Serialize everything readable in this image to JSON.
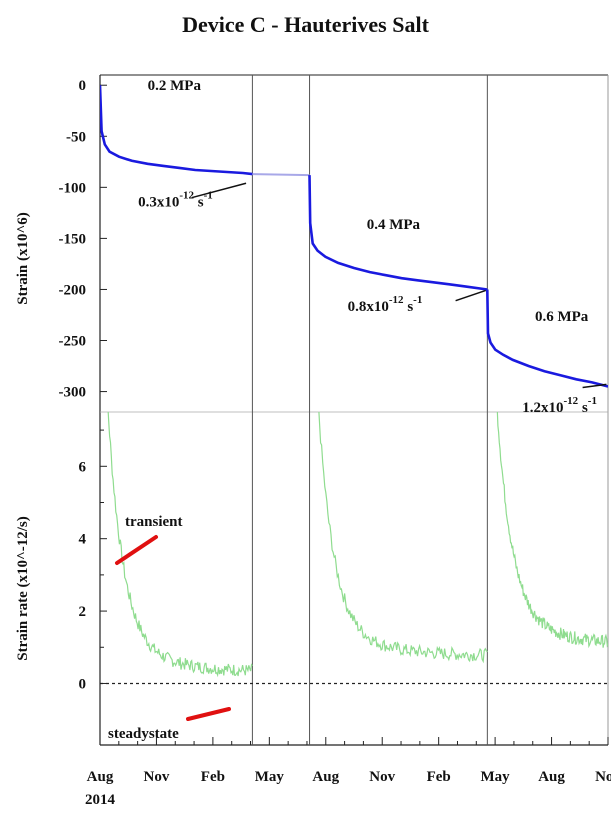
{
  "chart_data": [
    {
      "type": "line",
      "title": "Device C - Hauterives Salt",
      "ylabel": "Strain (x10^6)",
      "ylim": [
        -320,
        10
      ],
      "y_ticks": [
        0,
        -50,
        -100,
        -150,
        -200,
        -250,
        -300
      ],
      "x_range_months_from_aug_2014": [
        0,
        16
      ],
      "stage_dividers_months": [
        4.8,
        6.6,
        12.2
      ],
      "series": [
        {
          "stage": "0.2 MPa",
          "color": "#1a1adf",
          "x": [
            0,
            0.05,
            0.15,
            0.3,
            0.6,
            1,
            1.5,
            2,
            2.5,
            3,
            3.5,
            4,
            4.5,
            4.8
          ],
          "y": [
            0,
            -45,
            -58,
            -65,
            -70,
            -74,
            -77,
            -79,
            -81,
            -83,
            -84,
            -85,
            -86,
            -87
          ]
        },
        {
          "stage": "gap",
          "color": "#a8a8e8",
          "x": [
            4.8,
            6.6
          ],
          "y": [
            -87,
            -88
          ]
        },
        {
          "stage": "0.4 MPa",
          "color": "#1a1adf",
          "x": [
            6.6,
            6.62,
            6.7,
            6.85,
            7.1,
            7.5,
            8,
            8.5,
            9,
            9.5,
            10,
            10.5,
            11,
            11.5,
            12.2
          ],
          "y": [
            -88,
            -135,
            -155,
            -162,
            -168,
            -174,
            -179,
            -183,
            -186,
            -189,
            -191,
            -193,
            -195,
            -197,
            -200
          ]
        },
        {
          "stage": "0.6 MPa",
          "color": "#1a1adf",
          "x": [
            12.2,
            12.22,
            12.3,
            12.45,
            12.7,
            13,
            13.5,
            14,
            14.5,
            15,
            15.5,
            16
          ],
          "y": [
            -200,
            -243,
            -252,
            -259,
            -264,
            -269,
            -275,
            -280,
            -284,
            -288,
            -291,
            -295
          ]
        }
      ],
      "annotations": [
        {
          "label": "0.2 MPa",
          "x": 1.5,
          "y": 0
        },
        {
          "label": "0.4 MPa",
          "x": 8.4,
          "y": -136
        },
        {
          "label": "0.6 MPa",
          "x": 13.7,
          "y": -226
        },
        {
          "base": "0.3x10",
          "exp": "-12",
          "unit": "s",
          "unit_exp": "-1",
          "x": 1.2,
          "y": -119
        },
        {
          "base": "0.8x10",
          "exp": "-12",
          "unit": "s",
          "unit_exp": "-1",
          "x": 7.8,
          "y": -221
        },
        {
          "base": "1.2x10",
          "exp": "-12",
          "unit": "s",
          "unit_exp": "-1",
          "x": 13.3,
          "y": -320
        }
      ]
    },
    {
      "type": "line",
      "ylabel": "Strain rate (x10^-12/s)",
      "ylim": [
        -1.7,
        7.5
      ],
      "y_ticks": [
        0,
        2,
        4,
        6
      ],
      "x_range_months_from_aug_2014": [
        0,
        16
      ],
      "x_ticks": [
        "Aug",
        "Nov",
        "Feb",
        "May",
        "Aug",
        "Nov",
        "Feb",
        "May",
        "Aug",
        "Nov"
      ],
      "x_tick_positions_months": [
        0,
        3,
        6,
        9,
        12,
        15,
        18,
        21,
        24,
        27
      ],
      "x_year_label": "2014",
      "series_color": "#8fdc8f",
      "series": [
        {
          "x_start": 0.02,
          "x_end": 4.8,
          "peak": 7.5,
          "floor": 0.3
        },
        {
          "x_start": 6.62,
          "x_end": 12.2,
          "peak": 7.5,
          "floor": 0.75
        },
        {
          "x_start": 12.22,
          "x_end": 16,
          "peak": 7.5,
          "floor": 1.05
        }
      ],
      "reference_line": {
        "y": 0,
        "style": "dashed"
      },
      "annotations": [
        {
          "label": "transient",
          "color": "#e01010"
        },
        {
          "label": "steadystate",
          "color": "#e01010"
        }
      ]
    }
  ]
}
